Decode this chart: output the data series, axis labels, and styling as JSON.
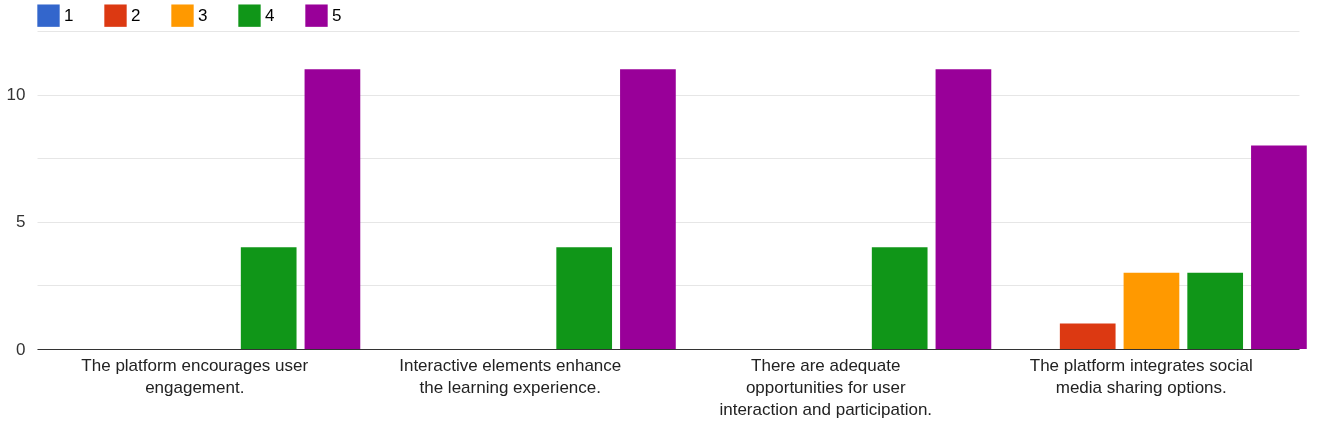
{
  "chart_data": {
    "type": "bar",
    "categories": [
      "The platform encourages user engagement.",
      "Interactive elements enhance the learning experience.",
      "There are adequate opportunities for user interaction and participation.",
      "The platform integrates social media sharing options."
    ],
    "series": [
      {
        "name": "1",
        "color": "#3366cc",
        "values": [
          0,
          0,
          0,
          0
        ]
      },
      {
        "name": "2",
        "color": "#dc3912",
        "values": [
          0,
          0,
          0,
          1
        ]
      },
      {
        "name": "3",
        "color": "#ff9900",
        "values": [
          0,
          0,
          0,
          3
        ]
      },
      {
        "name": "4",
        "color": "#109618",
        "values": [
          4,
          4,
          4,
          3
        ]
      },
      {
        "name": "5",
        "color": "#990099",
        "values": [
          11,
          11,
          11,
          8
        ]
      }
    ],
    "ylim": [
      0,
      12.5
    ],
    "yticks": [
      0,
      {
        "value": 2.5,
        "label": null
      },
      5,
      {
        "value": 7.5,
        "label": null
      },
      10,
      {
        "value": 12.5,
        "label": null
      }
    ],
    "grid": "y",
    "legend": "top left"
  }
}
